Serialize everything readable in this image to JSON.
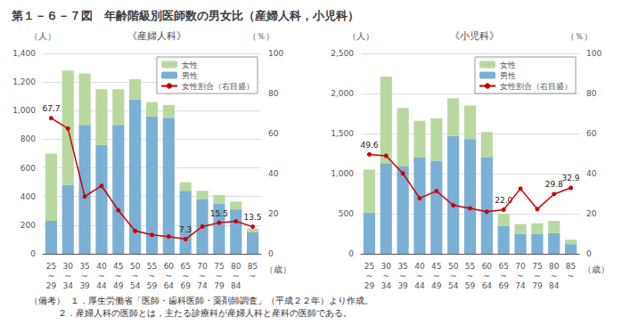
{
  "title": "第１－６－７図　年齢階級別医師数の男女比（産婦人科，小児科）",
  "notes": [
    "（備考）  １．厚生労働省「医師・歯科医師・薬剤師調査」（平成２２年）より作成。",
    "          ２．産婦人科の医師とは，主たる診療科が産婦人科と産科の医師である。"
  ],
  "chart_data": [
    {
      "type": "bar",
      "subtitle": "《産婦人科》",
      "categories": [
        "25\n~\n29",
        "30\n~\n34",
        "35\n~\n39",
        "40\n~\n44",
        "45\n~\n49",
        "50\n~\n54",
        "55\n~\n59",
        "60\n~\n64",
        "65\n~\n69",
        "70\n~\n74",
        "75\n~\n79",
        "80\n~\n84",
        "85\n~"
      ],
      "xlabel": "（歳）",
      "ylabel": "（人）",
      "y2label": "（％）",
      "series": [
        {
          "name": "男性",
          "color": "#7BAFD4",
          "values": [
            230,
            480,
            900,
            760,
            900,
            1080,
            960,
            950,
            440,
            380,
            350,
            310,
            150
          ]
        },
        {
          "name": "女性",
          "color": "#B8D8A0",
          "values": [
            470,
            800,
            360,
            390,
            250,
            140,
            100,
            90,
            60,
            60,
            60,
            55,
            25
          ]
        },
        {
          "name": "女性割合（右目盛）",
          "type": "line",
          "axis": "y2",
          "color": "#CC0000",
          "marker": "circle",
          "values": [
            67.7,
            62.5,
            28.6,
            33.9,
            21.7,
            11.4,
            9.4,
            8.6,
            7.3,
            13.6,
            15.5,
            16.2,
            13.5
          ]
        }
      ],
      "annotations": [
        {
          "x": "25\n~\n29",
          "y": 67.7,
          "text": "67.7"
        },
        {
          "x": "65\n~\n69",
          "y": 7.3,
          "text": "7.3"
        },
        {
          "x": "75\n~\n79",
          "y": 15.5,
          "text": "15.5"
        },
        {
          "x": "85\n~",
          "y": 13.5,
          "text": "13.5"
        }
      ],
      "stacked": true,
      "ylim": [
        0,
        1400
      ],
      "yticks": [
        0,
        200,
        400,
        600,
        800,
        1000,
        1200,
        1400
      ],
      "y2lim": [
        0,
        100
      ],
      "y2ticks": [
        0,
        20,
        40,
        60,
        80,
        100
      ],
      "grid": true,
      "legend": "upper right"
    },
    {
      "type": "bar",
      "subtitle": "《小児科》",
      "categories": [
        "25\n~\n29",
        "30\n~\n34",
        "35\n~\n39",
        "40\n~\n44",
        "45\n~\n49",
        "50\n~\n54",
        "55\n~\n59",
        "60\n~\n64",
        "65\n~\n69",
        "70\n~\n74",
        "75\n~\n79",
        "80\n~\n84",
        "85\n~"
      ],
      "xlabel": "（歳）",
      "ylabel": "（人）",
      "y2label": "（％）",
      "series": [
        {
          "name": "男性",
          "color": "#7BAFD4",
          "values": [
            510,
            1130,
            1090,
            1200,
            1160,
            1470,
            1430,
            1200,
            350,
            250,
            250,
            260,
            120
          ]
        },
        {
          "name": "女性",
          "color": "#B8D8A0",
          "values": [
            540,
            1080,
            730,
            460,
            530,
            470,
            420,
            320,
            150,
            120,
            130,
            150,
            55
          ]
        },
        {
          "name": "女性割合（右目盛）",
          "type": "line",
          "axis": "y2",
          "color": "#CC0000",
          "marker": "circle",
          "values": [
            49.6,
            48.9,
            40.1,
            27.7,
            31.3,
            24.2,
            22.7,
            21.0,
            22.0,
            32.5,
            22.3,
            29.8,
            32.9
          ]
        }
      ],
      "annotations": [
        {
          "x": "25\n~\n29",
          "y": 49.6,
          "text": "49.6"
        },
        {
          "x": "65\n~\n69",
          "y": 22.0,
          "text": "22.0"
        },
        {
          "x": "80\n~\n84",
          "y": 29.8,
          "text": "29.8"
        },
        {
          "x": "85\n~",
          "y": 32.9,
          "text": "32.9"
        }
      ],
      "stacked": true,
      "ylim": [
        0,
        2500
      ],
      "yticks": [
        0,
        500,
        1000,
        1500,
        2000,
        2500
      ],
      "y2lim": [
        0,
        100
      ],
      "y2ticks": [
        0,
        20,
        40,
        60,
        80,
        100
      ],
      "grid": true,
      "legend": "upper right"
    }
  ]
}
